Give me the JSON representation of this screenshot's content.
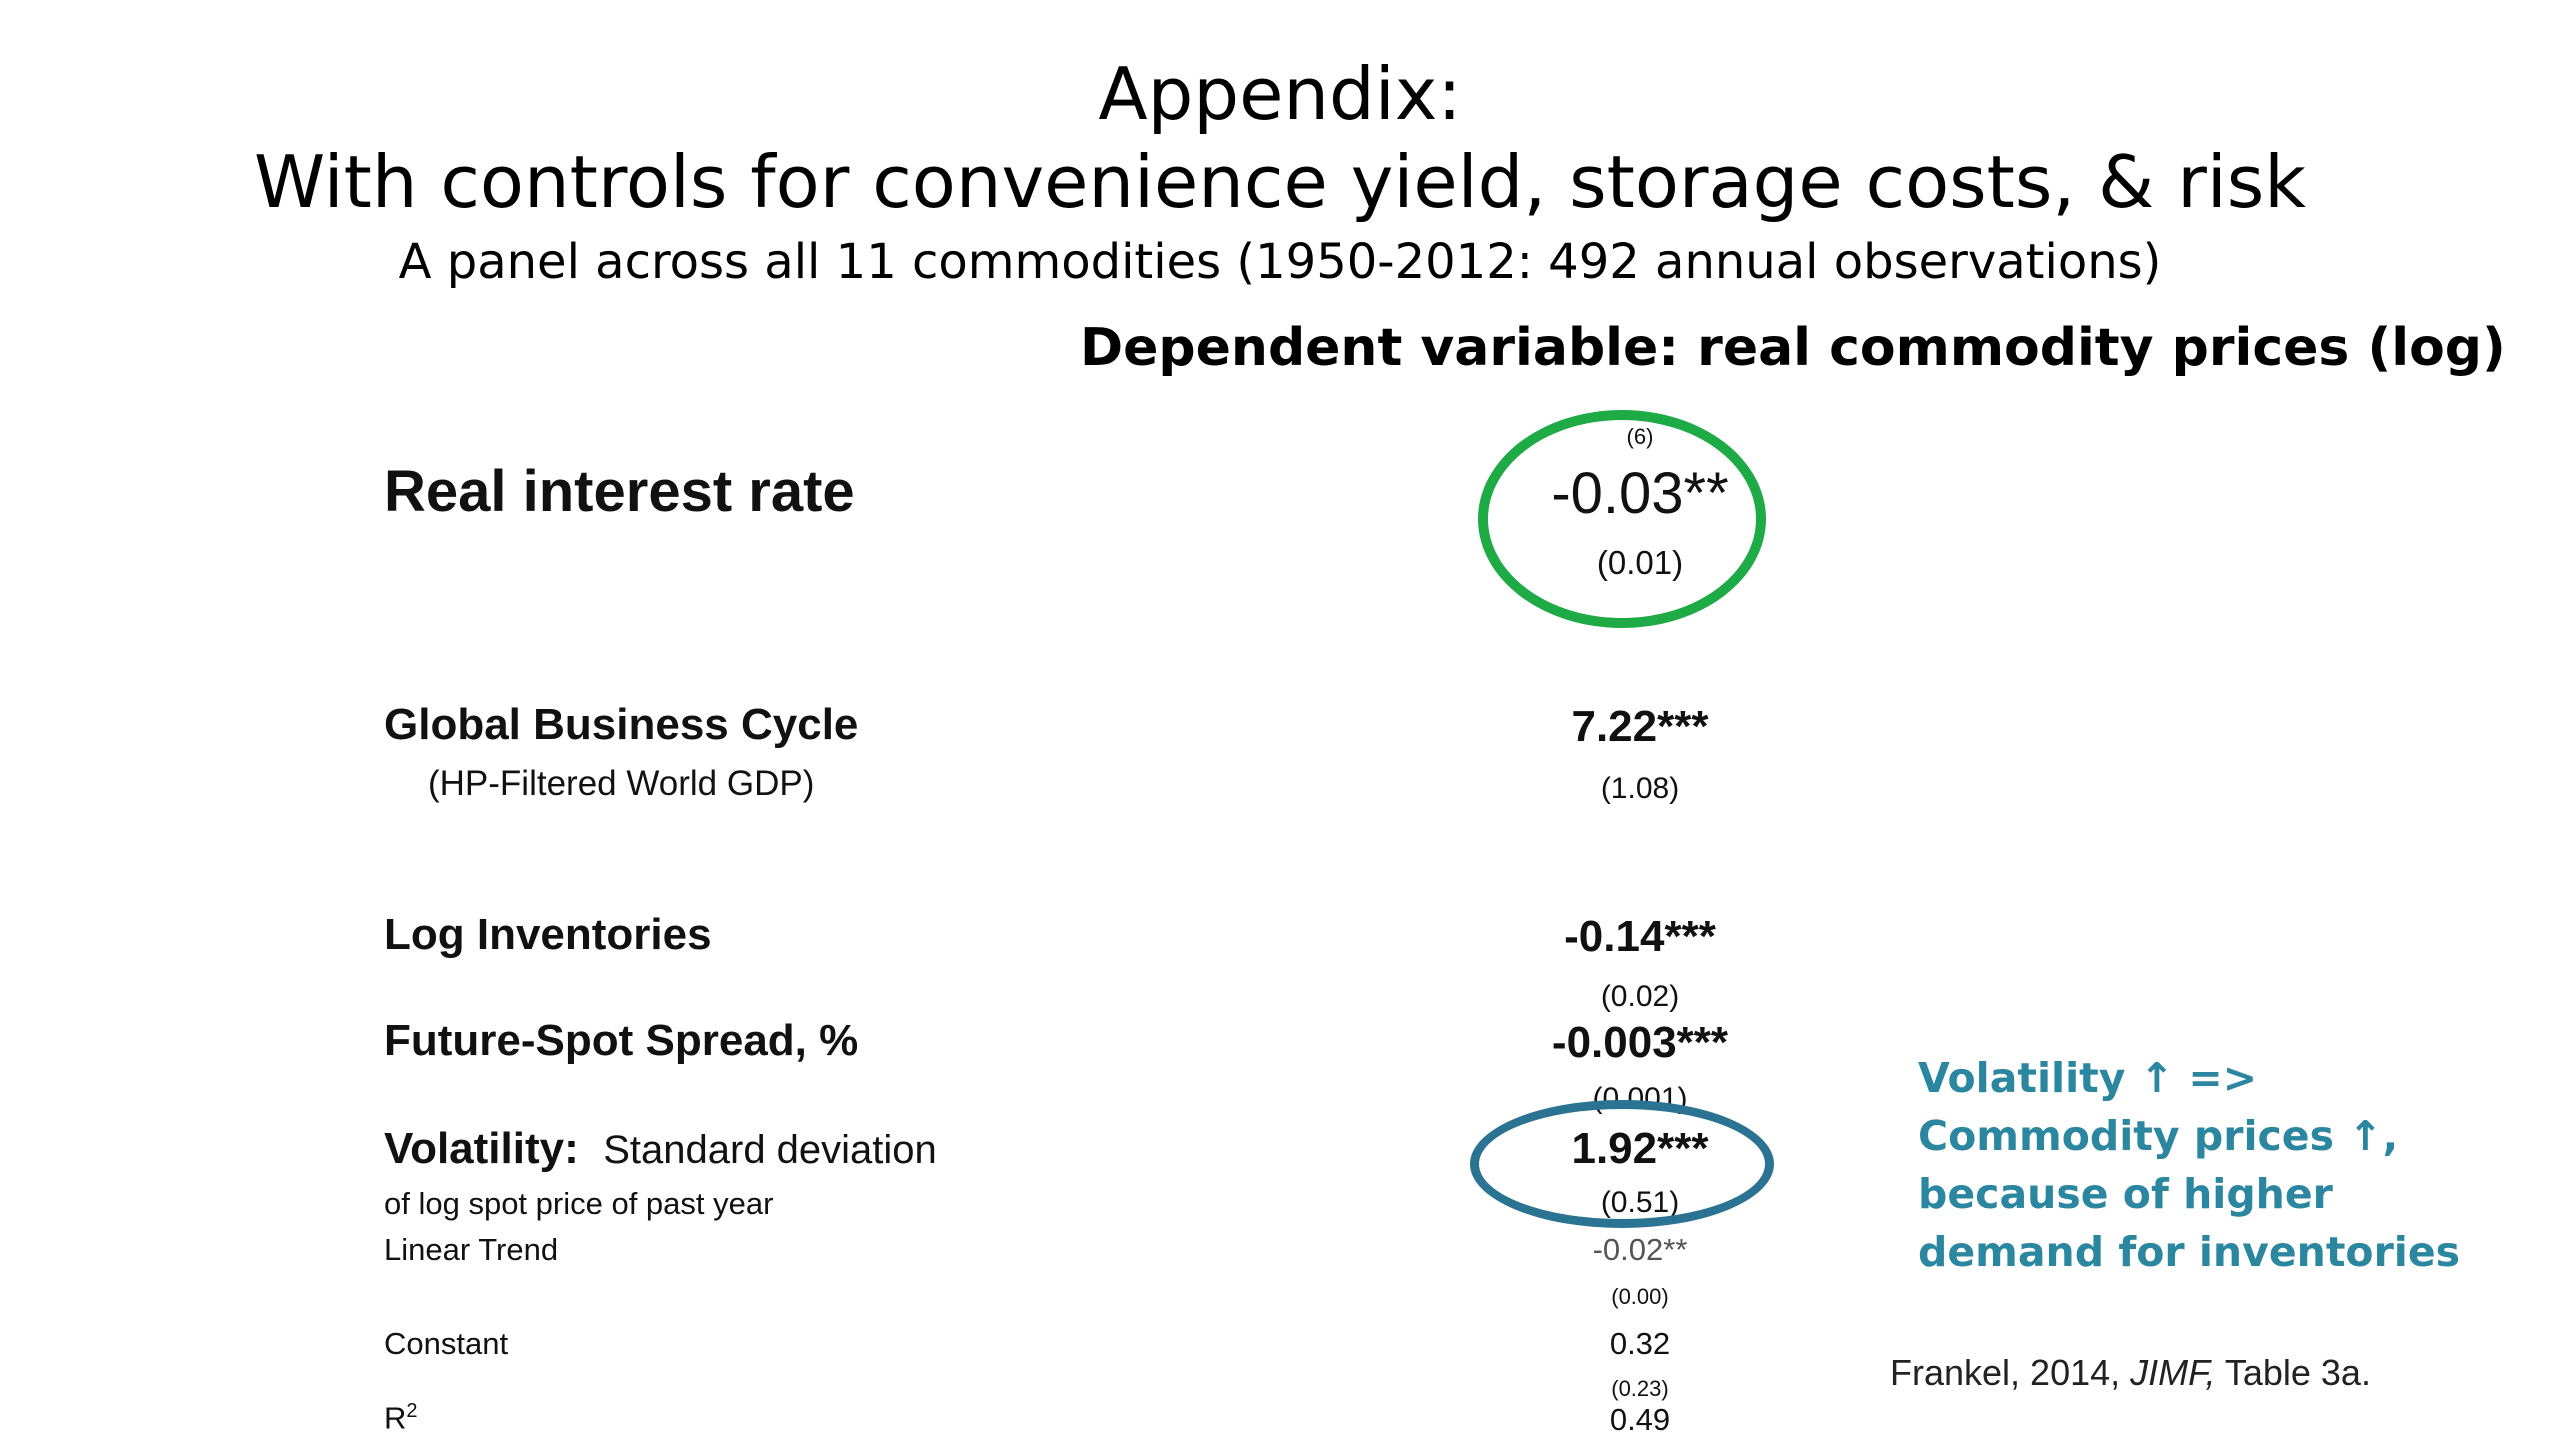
{
  "slide": {
    "title_line1": "Appendix:",
    "title_line2": "With controls for convenience yield, storage costs, & risk",
    "subtitle": "A panel across all 11 commodities (1950-2012: 492 annual observations)",
    "dependent_variable": "Dependent variable:  real commodity prices (log)"
  },
  "table": {
    "column_number": "(6)",
    "rows": [
      {
        "label": "Real interest rate",
        "coef": "-0.03**",
        "se": "(0.01)"
      },
      {
        "label": "Global Business Cycle",
        "sublabel": "(HP-Filtered World GDP)",
        "coef": "7.22***",
        "se": "(1.08)"
      },
      {
        "label": "Log Inventories",
        "coef": "-0.14***",
        "se": "(0.02)"
      },
      {
        "label": "Future-Spot Spread, %",
        "coef": "-0.003***",
        "se": "(0.001)"
      },
      {
        "label": "Volatility:",
        "label_rest": "Standard deviation",
        "sublabel": "of log spot price of past year",
        "coef": "1.92***",
        "se": "(0.51)"
      },
      {
        "label": "Linear Trend",
        "coef": "-0.02**",
        "se": "(0.00)"
      },
      {
        "label": "Constant",
        "coef": "0.32",
        "se": "(0.23)"
      },
      {
        "label": "R",
        "label_sup": "2",
        "coef": "0.49"
      }
    ]
  },
  "annotation": {
    "lines": [
      "Volatility ↑    =>",
      "Commodity prices  ↑,",
      "because of higher",
      "demand for inventories"
    ]
  },
  "citation": {
    "prefix": "Frankel, 2014, ",
    "journal": "JIMF,",
    "suffix": " Table 3a."
  },
  "colors": {
    "green_ellipse": "#1eab45",
    "teal_ellipse": "#2a7393",
    "annotation_text": "#2b86a0"
  }
}
